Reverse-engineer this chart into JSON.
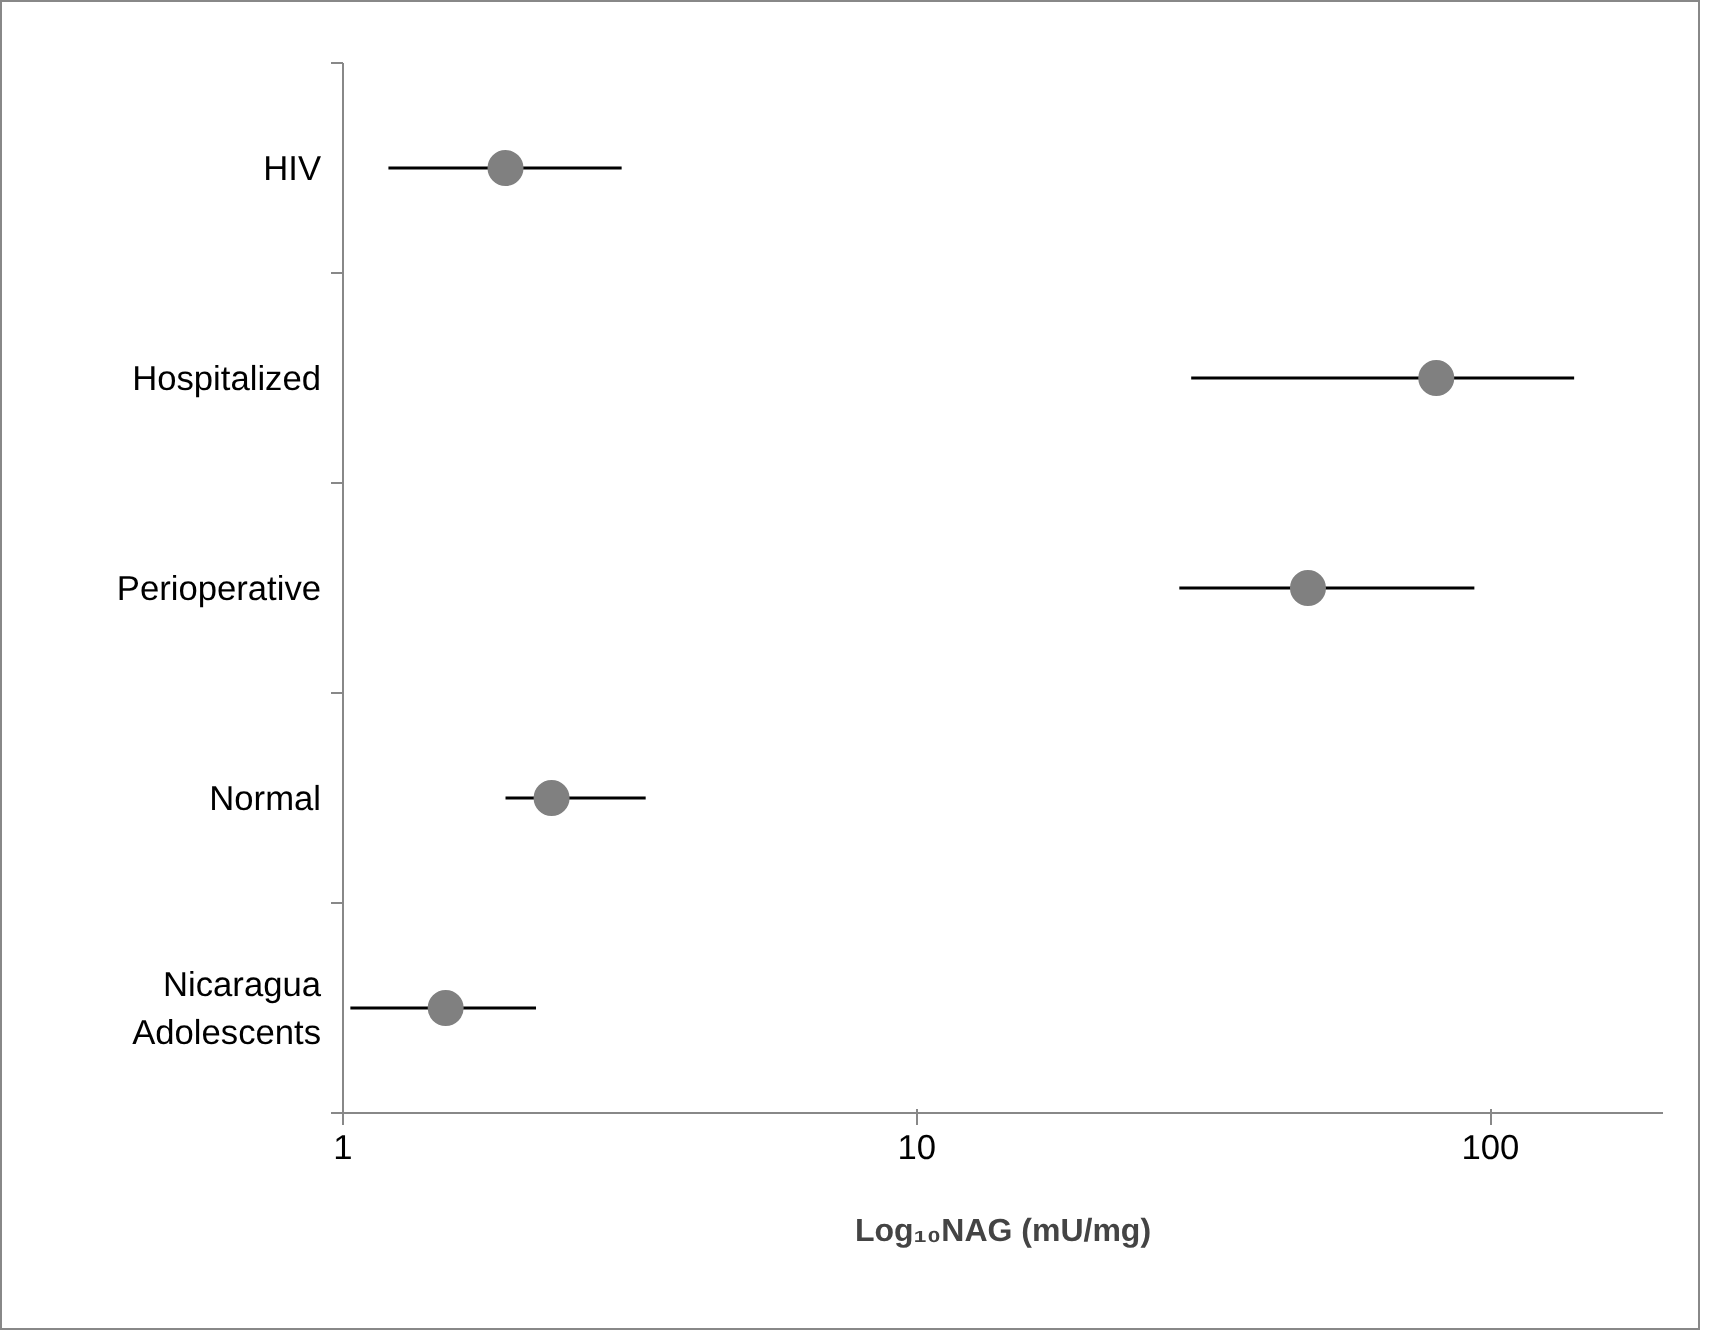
{
  "chart_data": {
    "type": "scatter",
    "orientation": "horizontal",
    "xlabel": "Log₁₀NAG (mU/mg)",
    "categories": [
      "HIV",
      "Hospitalized",
      "Perioperative",
      "Normal",
      "Nicaragua\nAdolescents"
    ],
    "values": [
      1.92,
      80.5,
      48.1,
      2.31,
      1.51
    ],
    "errors": [
      [
        1.2,
        3.06
      ],
      [
        30.1,
        140
      ],
      [
        28.7,
        93.8
      ],
      [
        1.92,
        3.37
      ],
      [
        1.03,
        2.17
      ]
    ],
    "color": "#808080",
    "marker": "circle",
    "log": "x",
    "grid": false,
    "xlim": [
      1,
      200
    ],
    "xticks": [
      1,
      10,
      100
    ]
  }
}
